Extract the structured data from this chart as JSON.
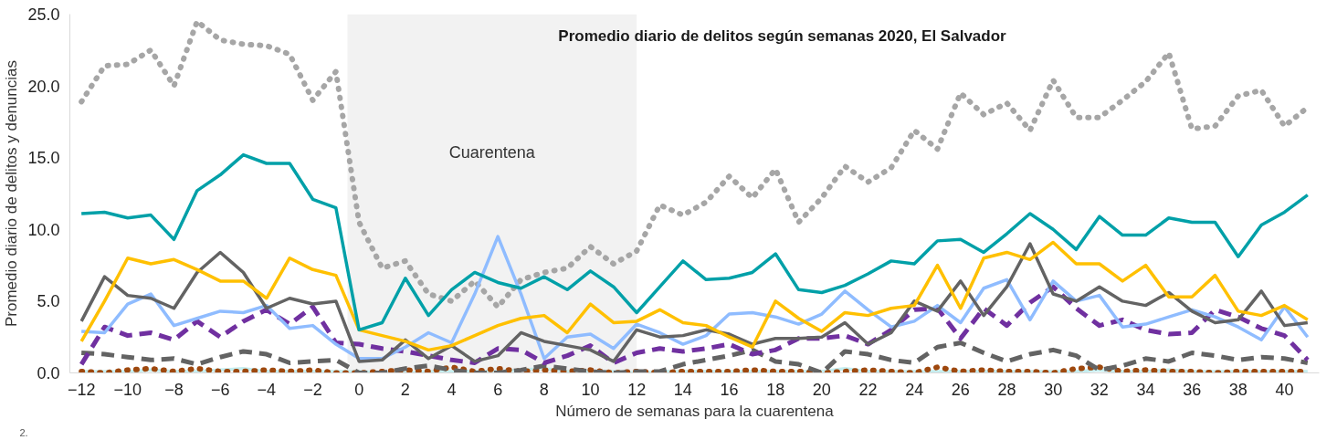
{
  "chart_data": {
    "type": "line",
    "title": "Promedio diario de delitos según semanas 2020, El Salvador",
    "xlabel": "Número de semanas para la cuarentena",
    "ylabel": "Promedio diario de delitos y denuncias",
    "annotations": [
      "2."
    ],
    "x": [
      -12,
      -11,
      -10,
      -9,
      -8,
      -7,
      -6,
      -5,
      -4,
      -3,
      -2,
      -1,
      0,
      1,
      2,
      3,
      4,
      5,
      6,
      7,
      8,
      9,
      10,
      11,
      12,
      13,
      14,
      15,
      16,
      17,
      18,
      19,
      20,
      21,
      22,
      23,
      24,
      25,
      26,
      27,
      28,
      29,
      30,
      31,
      32,
      33,
      34,
      35,
      36,
      37,
      38,
      39,
      40,
      41
    ],
    "xlim": [
      -12.5,
      41.5
    ],
    "xticks": [
      -12,
      -10,
      -8,
      -6,
      -4,
      -2,
      0,
      2,
      4,
      6,
      8,
      10,
      12,
      14,
      16,
      18,
      20,
      22,
      24,
      26,
      28,
      30,
      32,
      34,
      36,
      38,
      40
    ],
    "ylim": [
      0,
      25
    ],
    "yticks": [
      {
        "value": 0,
        "label": "0.0"
      },
      {
        "value": 5,
        "label": "5.0"
      },
      {
        "value": 10,
        "label": "10.0"
      },
      {
        "value": 15,
        "label": "15.0"
      },
      {
        "value": 20,
        "label": "20.0"
      },
      {
        "value": 25,
        "label": "25.0"
      }
    ],
    "grid": false,
    "bands": [
      {
        "axis": "x",
        "from": -0.5,
        "to": 12,
        "label": "Cuarentena",
        "color": "#f2f2f2"
      }
    ],
    "series": [
      {
        "color": "#a6a6a6",
        "line_style": "dotted",
        "values": [
          18.9,
          21.4,
          21.5,
          22.5,
          20.0,
          24.5,
          23.2,
          22.9,
          22.8,
          22.2,
          19.0,
          21.0,
          10.5,
          7.3,
          7.8,
          5.5,
          5.0,
          6.4,
          4.6,
          6.5,
          7.0,
          7.3,
          8.8,
          7.6,
          8.5,
          11.7,
          11.0,
          11.9,
          13.7,
          12.2,
          14.2,
          10.5,
          12.2,
          14.4,
          13.3,
          14.3,
          16.9,
          15.6,
          19.5,
          18.0,
          18.8,
          16.9,
          20.4,
          17.8,
          17.8,
          19.0,
          20.3,
          22.3,
          17.0,
          17.2,
          19.3,
          19.7,
          17.2,
          18.5
        ]
      },
      {
        "color": "#c5eef0",
        "line_style": "solid",
        "values": [
          0.1,
          0.1,
          0.1,
          0.2,
          0.1,
          0.1,
          0.2,
          0.3,
          0.1,
          0.1,
          0.1,
          0.1,
          0.1,
          0.0,
          0.0,
          0.1,
          0.1,
          0.1,
          0.1,
          0.2,
          0.3,
          0.1,
          0.1,
          0.1,
          0.0,
          0.1,
          0.1,
          0.1,
          0.1,
          0.1,
          0.1,
          0.1,
          0.1,
          0.3,
          0.1,
          0.1,
          0.1,
          0.1,
          0.1,
          0.1,
          0.1,
          0.1,
          0.1,
          0.1,
          0.2,
          0.1,
          0.1,
          0.2,
          0.1,
          0.1,
          0.1,
          0.1,
          0.1,
          0.1
        ]
      },
      {
        "color": "#9e480e",
        "line_style": "dotted",
        "values": [
          0.1,
          0.0,
          0.2,
          0.3,
          0.1,
          0.3,
          0.1,
          0.1,
          0.2,
          0.1,
          0.2,
          0.0,
          0.0,
          0.1,
          0.2,
          0.1,
          0.4,
          0.1,
          0.3,
          0.1,
          0.2,
          0.1,
          0.2,
          0.0,
          0.1,
          0.0,
          0.1,
          0.1,
          0.1,
          0.2,
          0.1,
          0.1,
          0.0,
          0.1,
          0.2,
          0.1,
          0.0,
          0.4,
          0.1,
          0.2,
          0.1,
          0.1,
          0.0,
          0.3,
          0.4,
          0.1,
          0.2,
          0.1,
          0.1,
          0.0,
          0.1,
          0.1,
          0.1,
          0.1
        ]
      },
      {
        "color": "#636363",
        "line_style": "dashed",
        "values": [
          1.4,
          1.3,
          1.1,
          0.9,
          1.0,
          0.6,
          1.1,
          1.5,
          1.3,
          0.7,
          0.8,
          0.9,
          0.0,
          0.0,
          0.3,
          0.5,
          0.2,
          0.0,
          0.0,
          0.2,
          0.5,
          0.3,
          0.1,
          0.0,
          0.1,
          0.1,
          0.6,
          0.9,
          1.2,
          1.6,
          0.8,
          0.6,
          0.0,
          1.5,
          1.3,
          0.9,
          0.7,
          1.8,
          2.1,
          1.4,
          0.8,
          1.3,
          1.6,
          1.2,
          0.2,
          0.5,
          1.0,
          0.8,
          1.4,
          1.2,
          0.9,
          1.1,
          1.0,
          0.7
        ]
      },
      {
        "color": "#7030a0",
        "line_style": "dashed",
        "values": [
          0.6,
          3.2,
          2.6,
          2.8,
          2.3,
          3.6,
          2.5,
          3.6,
          4.4,
          3.4,
          4.6,
          2.1,
          2.0,
          1.7,
          1.5,
          1.2,
          0.9,
          0.7,
          1.7,
          1.6,
          0.7,
          1.2,
          1.9,
          0.7,
          1.4,
          1.7,
          1.5,
          1.7,
          2.0,
          1.3,
          1.6,
          2.4,
          2.4,
          2.6,
          2.0,
          3.0,
          4.4,
          4.5,
          2.4,
          4.5,
          3.3,
          4.9,
          6.0,
          4.5,
          3.3,
          3.7,
          3.0,
          2.7,
          2.8,
          4.4,
          3.9,
          3.1,
          2.6,
          0.9
        ]
      },
      {
        "color": "#8fbcff",
        "line_style": "solid",
        "values": [
          2.9,
          2.8,
          4.8,
          5.5,
          3.3,
          3.8,
          4.3,
          4.2,
          4.7,
          3.1,
          3.3,
          2.0,
          1.0,
          1.0,
          1.8,
          2.8,
          2.1,
          5.5,
          9.5,
          5.5,
          1.0,
          2.5,
          2.7,
          1.7,
          3.4,
          2.8,
          2.0,
          2.6,
          4.1,
          4.2,
          3.9,
          3.4,
          4.1,
          5.7,
          4.4,
          3.2,
          3.6,
          4.7,
          3.5,
          5.9,
          6.5,
          3.7,
          6.4,
          5.0,
          5.4,
          3.2,
          3.4,
          3.9,
          4.4,
          3.9,
          3.2,
          2.3,
          4.6,
          2.5
        ]
      },
      {
        "color": "#636363",
        "line_style": "solid",
        "values": [
          3.6,
          6.7,
          5.4,
          5.2,
          4.5,
          7.0,
          8.4,
          7.0,
          4.5,
          5.2,
          4.8,
          5.0,
          0.8,
          0.9,
          2.3,
          1.0,
          1.9,
          0.8,
          1.2,
          2.8,
          2.2,
          1.9,
          1.6,
          0.8,
          3.0,
          2.5,
          2.6,
          3.0,
          2.7,
          2.0,
          2.4,
          2.4,
          2.5,
          3.5,
          2.0,
          2.8,
          5.0,
          4.3,
          6.4,
          4.0,
          6.0,
          9.0,
          5.5,
          5.0,
          6.0,
          5.0,
          4.7,
          5.6,
          4.3,
          3.5,
          3.7,
          5.7,
          3.3,
          3.5
        ]
      },
      {
        "color": "#ffc000",
        "line_style": "solid",
        "values": [
          2.2,
          5.0,
          8.0,
          7.6,
          7.9,
          7.2,
          6.4,
          6.4,
          5.2,
          8.0,
          7.2,
          6.8,
          3.0,
          2.6,
          2.2,
          1.6,
          1.9,
          2.6,
          3.3,
          3.8,
          4.0,
          2.8,
          4.8,
          3.5,
          3.6,
          4.4,
          3.5,
          3.3,
          2.5,
          1.8,
          5.0,
          3.8,
          2.9,
          4.2,
          4.0,
          4.5,
          4.7,
          7.5,
          4.5,
          8.0,
          8.4,
          7.9,
          9.1,
          7.6,
          7.6,
          6.4,
          7.5,
          5.3,
          5.3,
          6.8,
          4.3,
          4.0,
          4.7,
          3.7
        ]
      },
      {
        "color": "#00a0a8",
        "line_style": "solid",
        "values": [
          11.1,
          11.2,
          10.8,
          11.0,
          9.3,
          12.7,
          13.8,
          15.2,
          14.6,
          14.6,
          12.1,
          11.5,
          3.0,
          3.5,
          6.6,
          4.0,
          5.8,
          7.0,
          6.3,
          5.9,
          6.7,
          5.8,
          7.1,
          6.0,
          4.2,
          6.0,
          7.8,
          6.5,
          6.6,
          7.0,
          8.3,
          5.8,
          5.6,
          6.1,
          6.9,
          7.8,
          7.6,
          9.2,
          9.3,
          8.4,
          9.7,
          11.1,
          10.0,
          8.6,
          10.9,
          9.6,
          9.6,
          10.8,
          10.5,
          10.5,
          8.1,
          10.3,
          11.2,
          12.4
        ]
      }
    ]
  }
}
